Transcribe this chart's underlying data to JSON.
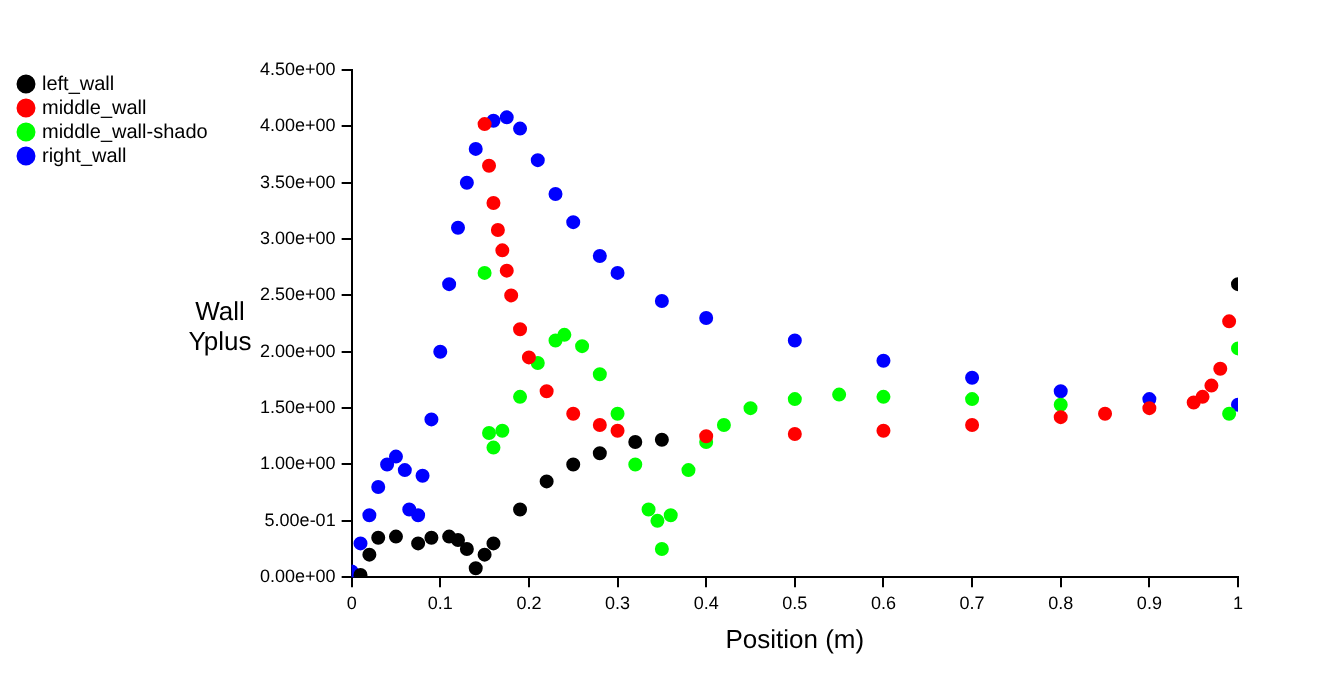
{
  "chart_data": {
    "type": "scatter",
    "xlabel": "Position (m)",
    "ylabel": "Wall Yplus",
    "xlim": [
      0,
      1
    ],
    "xticks": [
      0,
      0.1,
      0.2,
      0.3,
      0.4,
      0.5,
      0.6,
      0.7,
      0.8,
      0.9,
      1
    ],
    "ylim": [
      0,
      4.5
    ],
    "yticks": [
      {
        "value": 0,
        "label": "0.00e+00"
      },
      {
        "value": 0.5,
        "label": "5.00e-01"
      },
      {
        "value": 1,
        "label": "1.00e+00"
      },
      {
        "value": 1.5,
        "label": "1.50e+00"
      },
      {
        "value": 2,
        "label": "2.00e+00"
      },
      {
        "value": 2.5,
        "label": "2.50e+00"
      },
      {
        "value": 3,
        "label": "3.00e+00"
      },
      {
        "value": 3.5,
        "label": "3.50e+00"
      },
      {
        "value": 4,
        "label": "4.00e+00"
      },
      {
        "value": 4.5,
        "label": "4.50e+00"
      }
    ],
    "grid": false,
    "legend": "top left",
    "marker": "circle",
    "series": [
      {
        "name": "left_wall",
        "color": "#000000",
        "x": [
          0.01,
          0.02,
          0.03,
          0.05,
          0.07,
          0.075,
          0.09,
          0.11,
          0.12,
          0.13,
          0.14,
          0.15,
          0.16,
          0.19,
          0.22,
          0.25,
          0.28,
          0.32,
          0.35,
          1.0
        ],
        "values": [
          0.02,
          0.2,
          0.35,
          0.36,
          null,
          0.3,
          0.35,
          0.36,
          0.33,
          0.25,
          0.08,
          0.2,
          0.3,
          0.6,
          0.85,
          1.0,
          1.1,
          1.2,
          1.22,
          2.6
        ]
      },
      {
        "name": "middle_wall",
        "color": "#ff0000",
        "x": [
          0.15,
          0.155,
          0.16,
          0.165,
          0.17,
          0.175,
          0.18,
          0.19,
          0.2,
          0.22,
          0.25,
          0.28,
          0.3,
          0.35,
          0.4,
          0.5,
          0.6,
          0.7,
          0.8,
          0.85,
          0.9,
          0.95,
          0.96,
          0.97,
          0.98,
          0.99
        ],
        "values": [
          4.02,
          3.65,
          3.32,
          3.08,
          2.9,
          2.72,
          2.5,
          2.2,
          1.95,
          1.65,
          1.45,
          1.35,
          1.3,
          null,
          1.25,
          1.27,
          1.3,
          1.35,
          1.42,
          1.45,
          1.5,
          1.55,
          1.6,
          1.7,
          1.85,
          2.27
        ]
      },
      {
        "name": "middle_wall-shado",
        "color": "#00ff00",
        "x": [
          0.15,
          0.155,
          0.16,
          0.17,
          0.19,
          0.21,
          0.23,
          0.24,
          0.26,
          0.28,
          0.3,
          0.32,
          0.335,
          0.345,
          0.35,
          0.36,
          0.38,
          0.4,
          0.42,
          0.45,
          0.5,
          0.55,
          0.6,
          0.7,
          0.8,
          0.9,
          0.99,
          1.0
        ],
        "values": [
          2.7,
          1.28,
          1.15,
          1.3,
          1.6,
          1.9,
          2.1,
          2.15,
          2.05,
          1.8,
          1.45,
          1.0,
          0.6,
          0.5,
          0.25,
          0.55,
          0.95,
          1.2,
          1.35,
          1.5,
          1.58,
          1.62,
          1.6,
          1.58,
          1.53,
          null,
          1.45,
          2.03
        ]
      },
      {
        "name": "right_wall",
        "color": "#0000ff",
        "x": [
          0,
          0.01,
          0.02,
          0.03,
          0.04,
          0.05,
          0.06,
          0.065,
          0.07,
          0.075,
          0.08,
          0.09,
          0.1,
          0.11,
          0.12,
          0.13,
          0.14,
          0.15,
          0.16,
          0.175,
          0.19,
          0.21,
          0.23,
          0.25,
          0.28,
          0.3,
          0.35,
          0.4,
          0.5,
          0.6,
          0.7,
          0.8,
          0.9,
          1.0
        ],
        "values": [
          0.05,
          0.3,
          0.55,
          0.8,
          1.0,
          1.07,
          0.95,
          0.6,
          null,
          0.55,
          0.9,
          1.4,
          2.0,
          2.6,
          3.1,
          3.5,
          3.8,
          null,
          4.05,
          4.08,
          3.98,
          3.7,
          3.4,
          3.15,
          2.85,
          2.7,
          2.45,
          2.3,
          2.1,
          1.92,
          1.77,
          1.65,
          1.58,
          1.53
        ]
      }
    ]
  }
}
